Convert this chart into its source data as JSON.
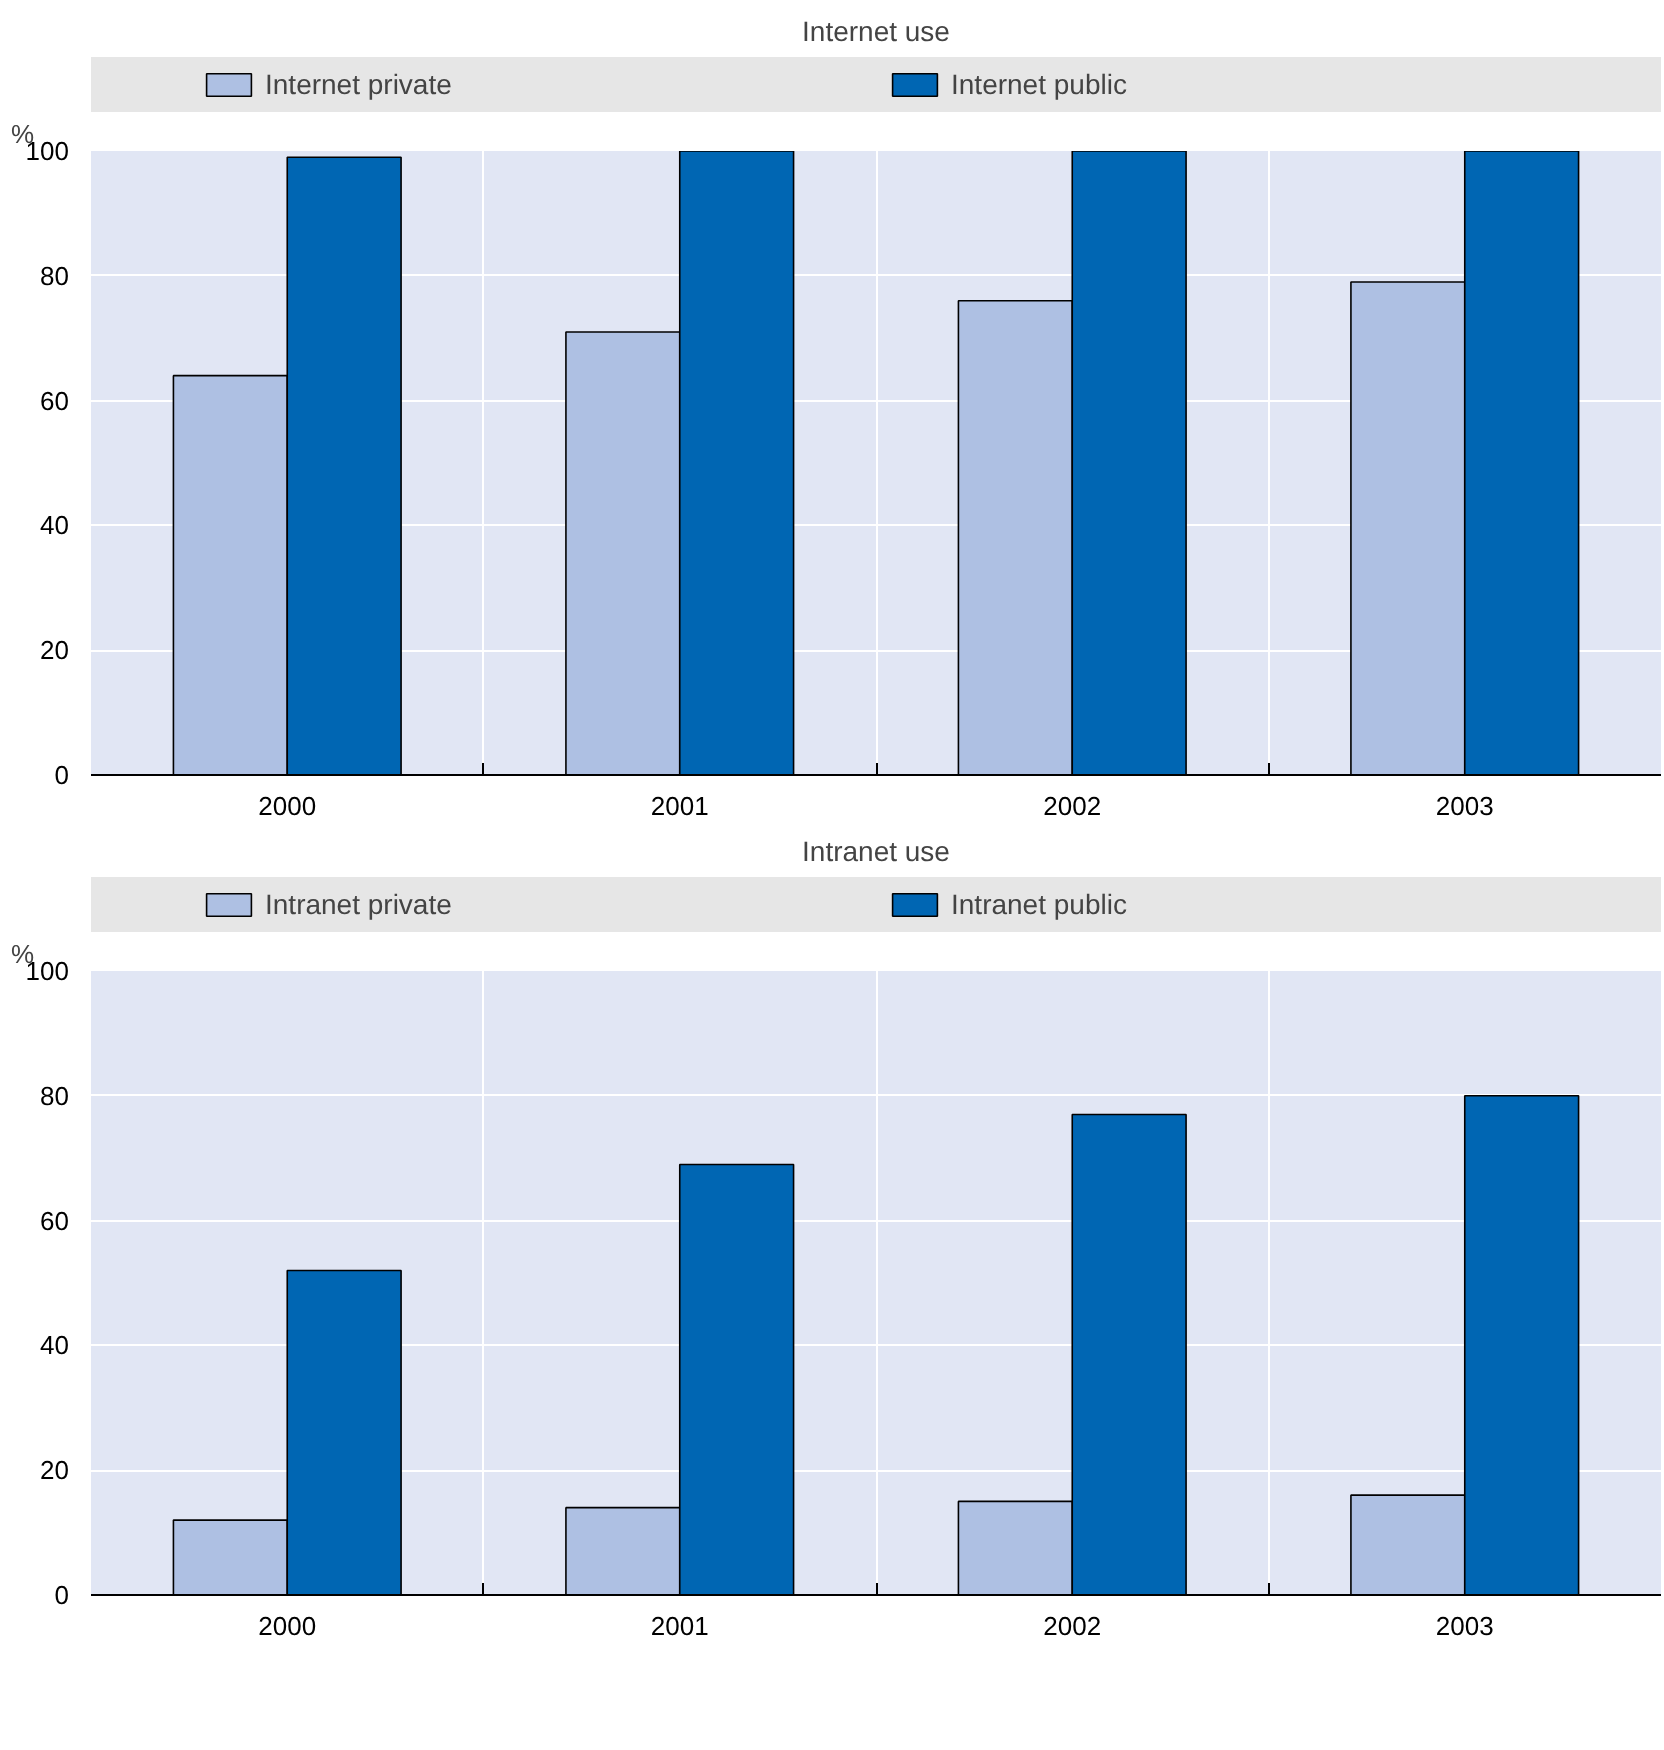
{
  "chart_data": [
    {
      "type": "bar",
      "title": "Internet use",
      "ylabel": "%",
      "categories": [
        "2000",
        "2001",
        "2002",
        "2003"
      ],
      "series": [
        {
          "name": "Internet private",
          "color": "#aec0e3",
          "values": [
            64,
            71,
            76,
            79
          ]
        },
        {
          "name": "Internet public",
          "color": "#0066b3",
          "values": [
            99,
            100,
            100,
            100
          ]
        }
      ],
      "ylim": [
        0,
        100
      ],
      "yticks": [
        0,
        20,
        40,
        60,
        80,
        100
      ],
      "grid": true,
      "legend": "top"
    },
    {
      "type": "bar",
      "title": "Intranet use",
      "ylabel": "%",
      "categories": [
        "2000",
        "2001",
        "2002",
        "2003"
      ],
      "series": [
        {
          "name": "Intranet private",
          "color": "#aec0e3",
          "values": [
            12,
            14,
            15,
            16
          ]
        },
        {
          "name": "Intranet public",
          "color": "#0066b3",
          "values": [
            52,
            69,
            77,
            80
          ]
        }
      ],
      "ylim": [
        0,
        100
      ],
      "yticks": [
        0,
        20,
        40,
        60,
        80,
        100
      ],
      "grid": true,
      "legend": "top"
    }
  ]
}
